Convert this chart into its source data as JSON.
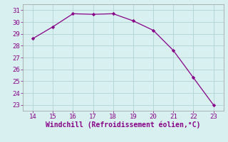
{
  "x": [
    14,
    15,
    16,
    17,
    18,
    19,
    20,
    21,
    22,
    23
  ],
  "y": [
    28.6,
    29.6,
    30.7,
    30.65,
    30.7,
    30.1,
    29.3,
    27.6,
    25.3,
    23.0
  ],
  "line_color": "#880088",
  "marker_color": "#880088",
  "bg_color": "#d8f0f0",
  "grid_color": "#b8d8d8",
  "xlabel": "Windchill (Refroidissement éolien,°C)",
  "label_color": "#880088",
  "tick_color": "#880088",
  "xlim": [
    13.5,
    23.5
  ],
  "ylim": [
    22.5,
    31.5
  ],
  "xticks": [
    14,
    15,
    16,
    17,
    18,
    19,
    20,
    21,
    22,
    23
  ],
  "yticks": [
    23,
    24,
    25,
    26,
    27,
    28,
    29,
    30,
    31
  ],
  "tick_fontsize": 6.5,
  "xlabel_fontsize": 7.0
}
